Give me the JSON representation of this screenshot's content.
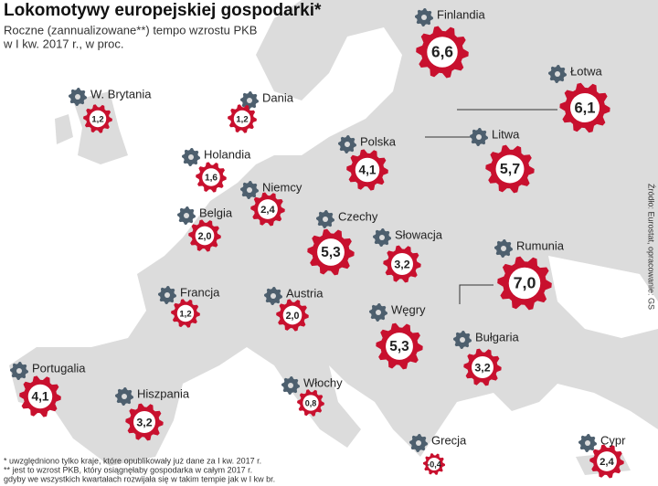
{
  "header": {
    "title": "Lokomotywy europejskiej gospodarki*",
    "subtitle": [
      "Roczne (zannualizowane**) tempo wzrostu PKB",
      "w I kw. 2017 r., w proc."
    ]
  },
  "countries": [
    {
      "name": "Finlandia",
      "value": 6.6,
      "value_label": "6,6"
    },
    {
      "name": "Łotwa",
      "value": 6.1,
      "value_label": "6,1"
    },
    {
      "name": "Litwa",
      "value": 5.7,
      "value_label": "5,7"
    },
    {
      "name": "W. Brytania",
      "value": 1.2,
      "value_label": "1,2"
    },
    {
      "name": "Dania",
      "value": 1.2,
      "value_label": "1,2"
    },
    {
      "name": "Polska",
      "value": 4.1,
      "value_label": "4,1"
    },
    {
      "name": "Holandia",
      "value": 1.6,
      "value_label": "1,6"
    },
    {
      "name": "Niemcy",
      "value": 2.4,
      "value_label": "2,4"
    },
    {
      "name": "Belgia",
      "value": 2.0,
      "value_label": "2,0"
    },
    {
      "name": "Czechy",
      "value": 5.3,
      "value_label": "5,3"
    },
    {
      "name": "Słowacja",
      "value": 3.2,
      "value_label": "3,2"
    },
    {
      "name": "Rumunia",
      "value": 7.0,
      "value_label": "7,0"
    },
    {
      "name": "Francja",
      "value": 1.2,
      "value_label": "1,2"
    },
    {
      "name": "Austria",
      "value": 2.0,
      "value_label": "2,0"
    },
    {
      "name": "Węgry",
      "value": 5.3,
      "value_label": "5,3"
    },
    {
      "name": "Bułgaria",
      "value": 3.2,
      "value_label": "3,2"
    },
    {
      "name": "Portugalia",
      "value": 4.1,
      "value_label": "4,1"
    },
    {
      "name": "Hiszpania",
      "value": 3.2,
      "value_label": "3,2"
    },
    {
      "name": "Włochy",
      "value": 0.8,
      "value_label": "0,8"
    },
    {
      "name": "Grecja",
      "value": -0.4,
      "value_label": "-0,4"
    },
    {
      "name": "Cypr",
      "value": 2.4,
      "value_label": "2,4"
    }
  ],
  "footnotes": [
    "* uwzględniono tylko kraje, które opublikowały już dane za I kw. 2017 r.",
    "** jest to wzrost PKB, który osiągnęłaby gospodarka w całym 2017 r.",
    "gdyby we wszystkich kwartałach rozwijała się w takim tempie jak w I kw br."
  ],
  "source": "Źródło: Eurostat, opracowanie: GS"
}
